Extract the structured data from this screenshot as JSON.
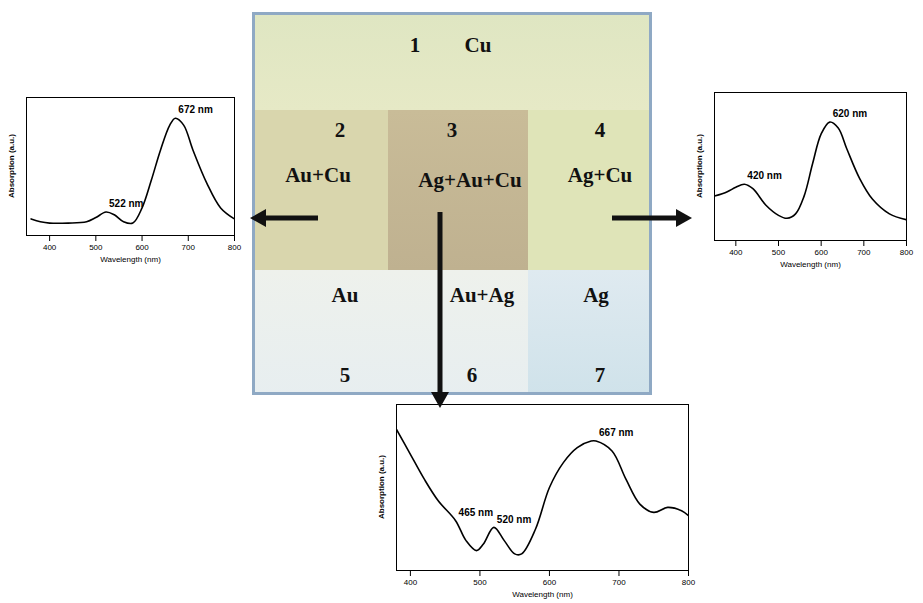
{
  "chart_data": [
    {
      "type": "line",
      "x_label": "Wavelength (nm)",
      "y_label": "Absorption (a.u.)",
      "color": "#000000",
      "tick_labels": "x",
      "x": [
        360,
        380,
        400,
        440,
        480,
        500,
        522,
        540,
        560,
        580,
        600,
        620,
        640,
        660,
        672,
        690,
        710,
        740,
        770,
        800
      ],
      "values": [
        0.12,
        0.1,
        0.09,
        0.09,
        0.1,
        0.13,
        0.17,
        0.15,
        0.1,
        0.09,
        0.2,
        0.4,
        0.62,
        0.8,
        0.85,
        0.8,
        0.62,
        0.38,
        0.2,
        0.12
      ],
      "xlim": [
        350,
        800
      ],
      "xticks": [
        400,
        500,
        600,
        700,
        800
      ],
      "ylim": [
        0,
        1
      ],
      "annotations": [
        {
          "x": 522,
          "y": 0.17,
          "label": "522 nm"
        },
        {
          "x": 672,
          "y": 0.85,
          "label": "672 nm"
        }
      ]
    },
    {
      "type": "line",
      "x_label": "Wavelength (nm)",
      "y_label": "Absorption (a.u.)",
      "color": "#000000",
      "tick_labels": "x",
      "x": [
        350,
        380,
        400,
        420,
        440,
        470,
        500,
        520,
        540,
        560,
        580,
        600,
        620,
        640,
        660,
        690,
        720,
        760,
        800
      ],
      "values": [
        0.3,
        0.33,
        0.36,
        0.38,
        0.35,
        0.24,
        0.17,
        0.15,
        0.18,
        0.3,
        0.52,
        0.72,
        0.8,
        0.76,
        0.62,
        0.42,
        0.28,
        0.18,
        0.14
      ],
      "xlim": [
        350,
        800
      ],
      "xticks": [
        400,
        500,
        600,
        700,
        800
      ],
      "ylim": [
        0,
        1
      ],
      "annotations": [
        {
          "x": 420,
          "y": 0.38,
          "label": "420 nm"
        },
        {
          "x": 620,
          "y": 0.8,
          "label": "620 nm"
        }
      ]
    },
    {
      "type": "line",
      "x_label": "Wavelength (nm)",
      "y_label": "Absorption (a.u.)",
      "color": "#000000",
      "tick_labels": "x",
      "x": [
        380,
        400,
        420,
        440,
        465,
        480,
        495,
        505,
        520,
        535,
        550,
        560,
        580,
        600,
        620,
        640,
        660,
        667,
        690,
        710,
        730,
        750,
        770,
        790,
        800
      ],
      "values": [
        0.85,
        0.7,
        0.55,
        0.42,
        0.3,
        0.18,
        0.12,
        0.16,
        0.26,
        0.18,
        0.1,
        0.1,
        0.25,
        0.5,
        0.65,
        0.74,
        0.78,
        0.78,
        0.72,
        0.55,
        0.4,
        0.35,
        0.38,
        0.36,
        0.33
      ],
      "xlim": [
        380,
        800
      ],
      "xticks": [
        400,
        500,
        600,
        700,
        800
      ],
      "ylim": [
        0,
        1
      ],
      "annotations": [
        {
          "x": 465,
          "y": 0.3,
          "label": "465 nm"
        },
        {
          "x": 520,
          "y": 0.26,
          "label": "520 nm"
        },
        {
          "x": 667,
          "y": 0.78,
          "label": "667 nm"
        }
      ]
    }
  ],
  "photo": {
    "regions": [
      {
        "number": "1",
        "label": "Cu"
      },
      {
        "number": "2",
        "label": "Au+Cu"
      },
      {
        "number": "3",
        "label": "Ag+Au+Cu"
      },
      {
        "number": "4",
        "label": "Ag+Cu"
      },
      {
        "number": "5",
        "label": "Au"
      },
      {
        "number": "6",
        "label": "Au+Ag"
      },
      {
        "number": "7",
        "label": "Ag"
      }
    ]
  }
}
